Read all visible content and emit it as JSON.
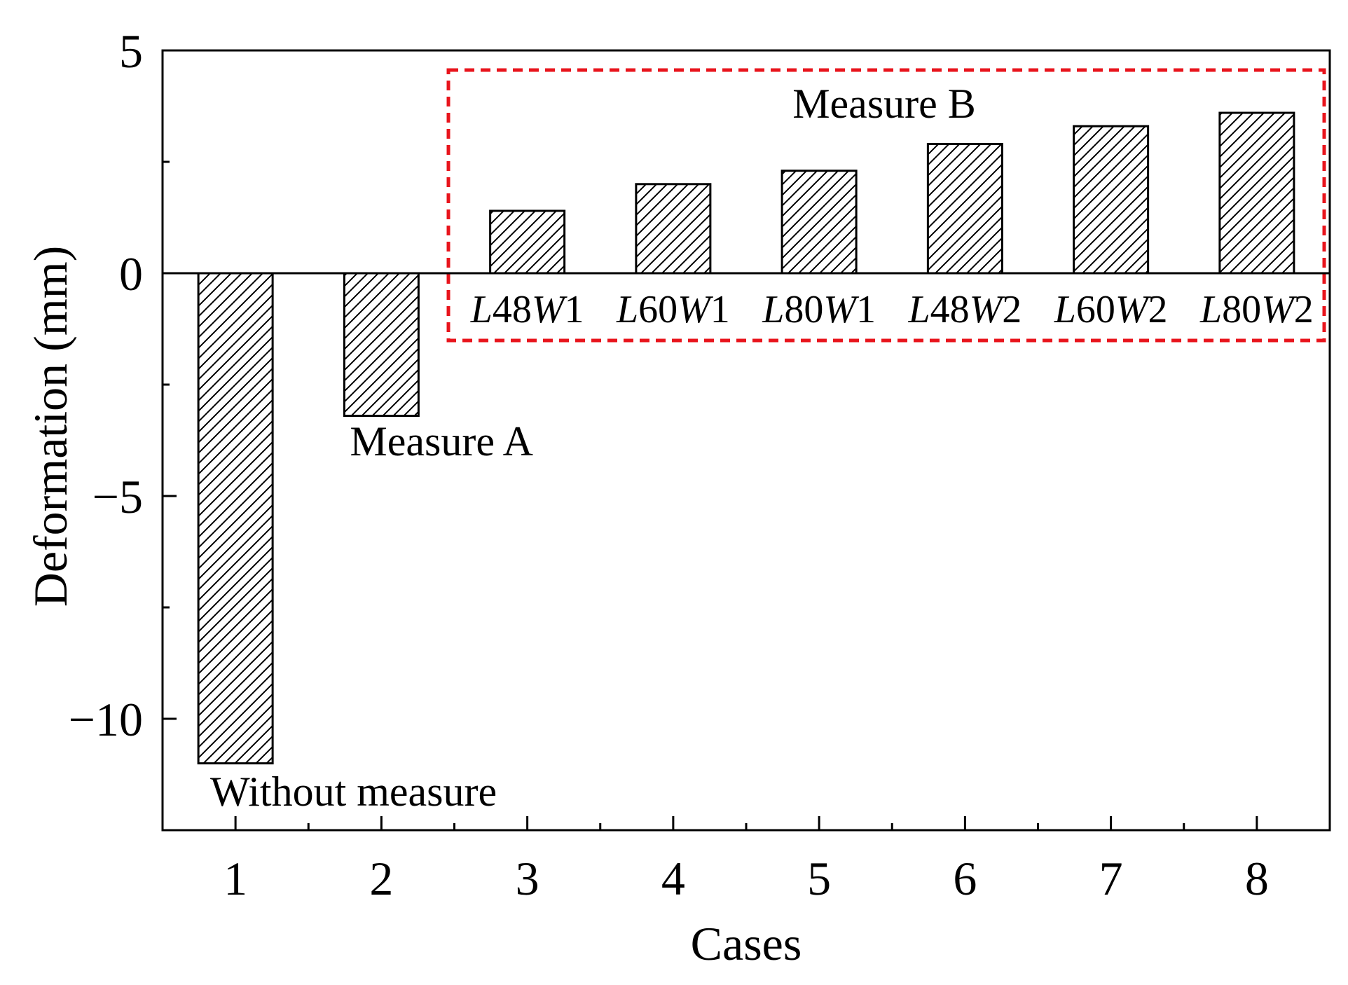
{
  "chart_data": {
    "type": "bar",
    "x": [
      1,
      2,
      3,
      4,
      5,
      6,
      7,
      8
    ],
    "values": [
      -11.0,
      -3.2,
      1.4,
      2.0,
      2.3,
      2.9,
      3.3,
      3.6
    ],
    "xlabel": "Cases",
    "ylabel": "Deformation (mm)",
    "xlim": [
      0.5,
      8.5
    ],
    "ylim": [
      -12.5,
      5
    ],
    "xticks": [
      "1",
      "2",
      "3",
      "4",
      "5",
      "6",
      "7",
      "8"
    ],
    "yticks": [
      5,
      0,
      -5,
      -10
    ],
    "ytick_labels": [
      "5",
      "0",
      "−5",
      "−10"
    ],
    "bar_fill": "diagonal hatch",
    "grid": false,
    "annotations": {
      "case1": "Without measure",
      "case2": "Measure A",
      "group": "Measure B",
      "group_labels": [
        {
          "italic1": "L",
          "num1": "48",
          "italic2": "W",
          "num2": "1"
        },
        {
          "italic1": "L",
          "num1": "60",
          "italic2": "W",
          "num2": "1"
        },
        {
          "italic1": "L",
          "num1": "80",
          "italic2": "W",
          "num2": "1"
        },
        {
          "italic1": "L",
          "num1": "48",
          "italic2": "W",
          "num2": "2"
        },
        {
          "italic1": "L",
          "num1": "60",
          "italic2": "W",
          "num2": "2"
        },
        {
          "italic1": "L",
          "num1": "80",
          "italic2": "W",
          "num2": "2"
        }
      ]
    },
    "colors": {
      "bars": "#000000",
      "group_box": "#e8141c"
    }
  }
}
